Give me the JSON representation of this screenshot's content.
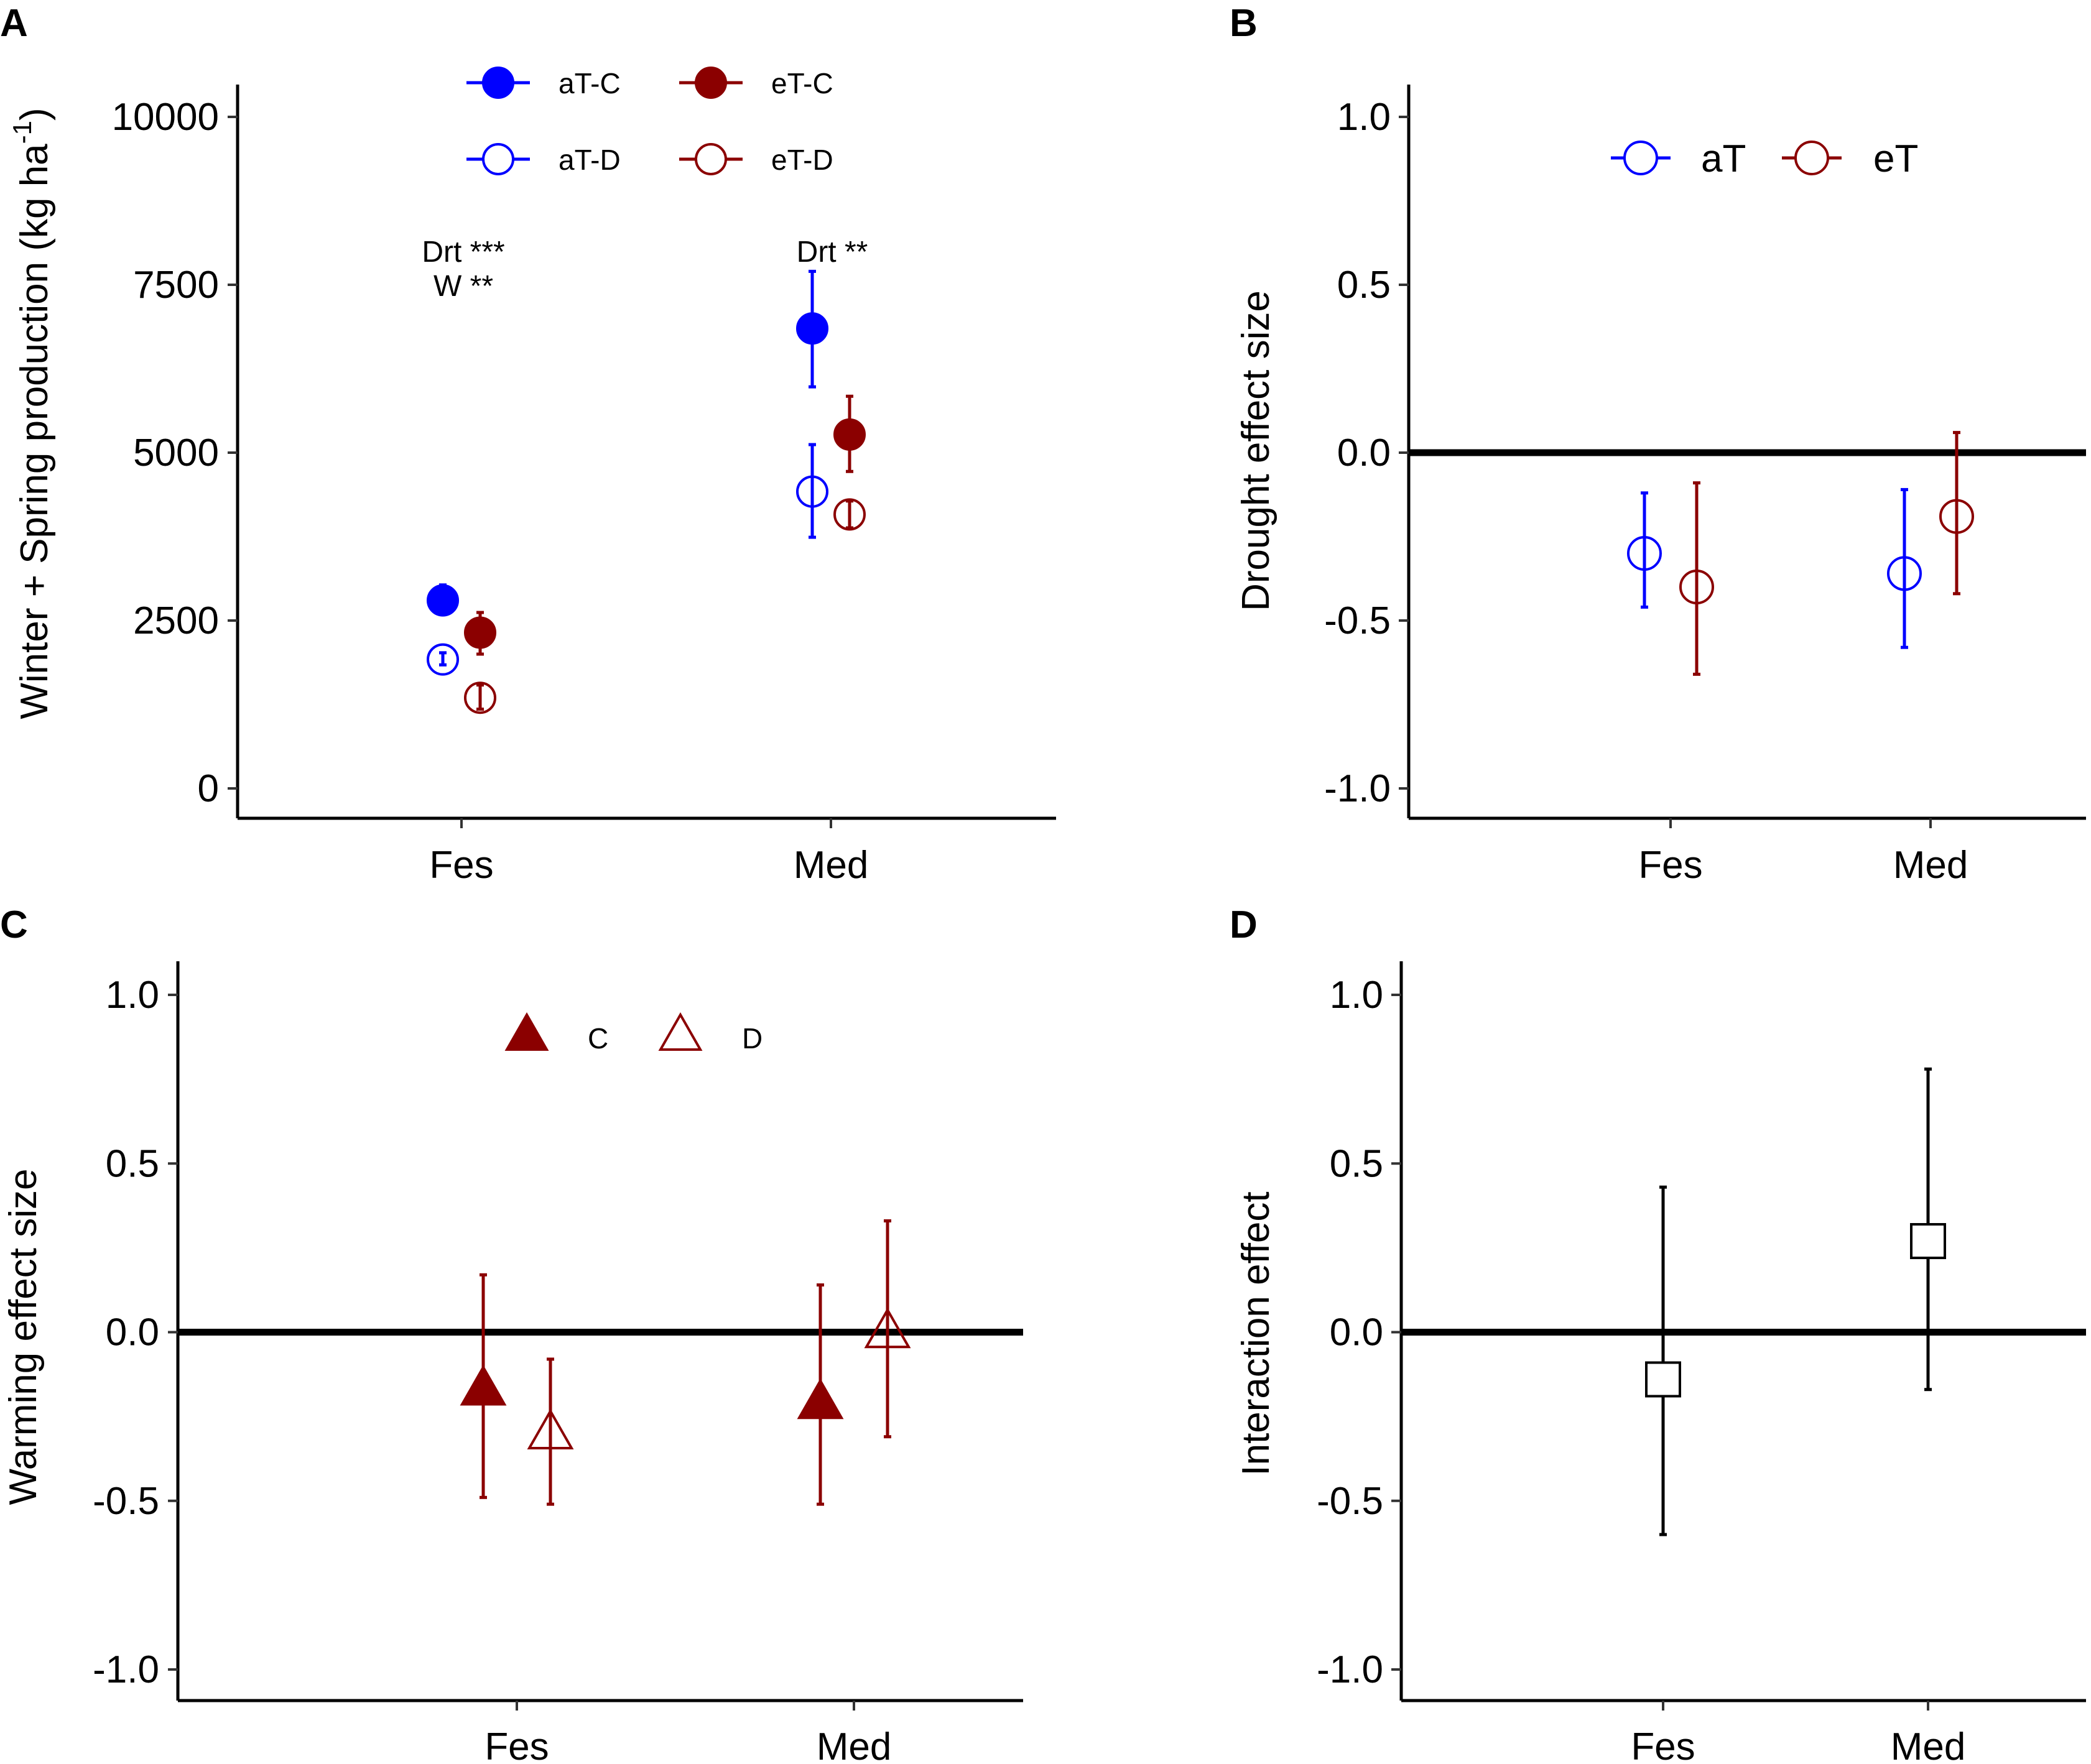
{
  "chart_data": [
    {
      "panel": "A",
      "type": "scatter",
      "subtype": "point-with-errorbars",
      "categories": [
        "Fes",
        "Med"
      ],
      "ylabel": "Winter + Spring production (kg ha",
      "ylabel_sup": "-1",
      "ylabel_close": ")",
      "ylim": [
        0,
        10000
      ],
      "yticks": [
        0,
        2500,
        5000,
        7500,
        10000
      ],
      "yticklabels": [
        "0",
        "2500",
        "5000",
        "7500",
        "10000"
      ],
      "legend": {
        "position": "top",
        "entries": [
          {
            "label": "aT-C",
            "color": "#0000FF",
            "filled": true
          },
          {
            "label": "eT-C",
            "color": "#8B0000",
            "filled": true
          },
          {
            "label": "aT-D",
            "color": "#0000FF",
            "filled": false
          },
          {
            "label": "eT-D",
            "color": "#8B0000",
            "filled": false
          }
        ]
      },
      "series": [
        {
          "name": "aT-C",
          "color": "#0000FF",
          "filled": true,
          "values": [
            2800,
            6850
          ],
          "lower": [
            2600,
            5980
          ],
          "upper": [
            3030,
            7700
          ]
        },
        {
          "name": "aT-D",
          "color": "#0000FF",
          "filled": false,
          "values": [
            1920,
            4420
          ],
          "lower": [
            1840,
            3740
          ],
          "upper": [
            2020,
            5120
          ]
        },
        {
          "name": "eT-C",
          "color": "#8B0000",
          "filled": true,
          "values": [
            2320,
            5270
          ],
          "lower": [
            2000,
            4720
          ],
          "upper": [
            2620,
            5840
          ]
        },
        {
          "name": "eT-D",
          "color": "#8B0000",
          "filled": false,
          "values": [
            1350,
            4080
          ],
          "lower": [
            1180,
            3880
          ],
          "upper": [
            1540,
            4280
          ]
        }
      ],
      "annotations": [
        {
          "category": "Fes",
          "lines": [
            "Drt ***",
            "W **"
          ]
        },
        {
          "category": "Med",
          "lines": [
            "Drt **"
          ]
        }
      ]
    },
    {
      "panel": "B",
      "type": "scatter",
      "subtype": "point-with-errorbars",
      "categories": [
        "Fes",
        "Med"
      ],
      "ylabel": "Drought effect size",
      "ylim": [
        -1.0,
        1.0
      ],
      "yticks": [
        -1.0,
        -0.5,
        0.0,
        0.5,
        1.0
      ],
      "yticklabels": [
        "-1.0",
        "-0.5",
        "0.0",
        "0.5",
        "1.0"
      ],
      "reference_line": 0,
      "legend": {
        "position": "top",
        "entries": [
          {
            "label": "aT",
            "color": "#0000FF",
            "filled": false
          },
          {
            "label": "eT",
            "color": "#8B0000",
            "filled": false
          }
        ]
      },
      "series": [
        {
          "name": "aT",
          "color": "#0000FF",
          "filled": false,
          "values": [
            -0.3,
            -0.36
          ],
          "lower": [
            -0.46,
            -0.58
          ],
          "upper": [
            -0.12,
            -0.11
          ]
        },
        {
          "name": "eT",
          "color": "#8B0000",
          "filled": false,
          "values": [
            -0.4,
            -0.19
          ],
          "lower": [
            -0.66,
            -0.42
          ],
          "upper": [
            -0.09,
            0.06
          ]
        }
      ]
    },
    {
      "panel": "C",
      "type": "scatter",
      "subtype": "point-with-errorbars",
      "categories": [
        "Fes",
        "Med"
      ],
      "ylabel": "Warming effect size",
      "ylim": [
        -1.0,
        1.0
      ],
      "yticks": [
        -1.0,
        -0.5,
        0.0,
        0.5,
        1.0
      ],
      "yticklabels": [
        "-1.0",
        "-0.5",
        "0.0",
        "0.5",
        "1.0"
      ],
      "reference_line": 0,
      "legend": {
        "position": "top",
        "entries": [
          {
            "label": "C",
            "color": "#8B0000",
            "filled": true,
            "shape": "triangle"
          },
          {
            "label": "D",
            "color": "#8B0000",
            "filled": false,
            "shape": "triangle"
          }
        ]
      },
      "series": [
        {
          "name": "C",
          "color": "#8B0000",
          "filled": true,
          "shape": "triangle",
          "values": [
            -0.17,
            -0.21
          ],
          "lower": [
            -0.49,
            -0.51
          ],
          "upper": [
            0.17,
            0.14
          ]
        },
        {
          "name": "D",
          "color": "#8B0000",
          "filled": false,
          "shape": "triangle",
          "values": [
            -0.3,
            0.0
          ],
          "lower": [
            -0.51,
            -0.31
          ],
          "upper": [
            -0.08,
            0.33
          ]
        }
      ]
    },
    {
      "panel": "D",
      "type": "scatter",
      "subtype": "point-with-errorbars",
      "categories": [
        "Fes",
        "Med"
      ],
      "ylabel": "Interaction effect",
      "ylim": [
        -1.0,
        1.0
      ],
      "yticks": [
        -1.0,
        -0.5,
        0.0,
        0.5,
        1.0
      ],
      "yticklabels": [
        "-1.0",
        "-0.5",
        "0.0",
        "0.5",
        "1.0"
      ],
      "reference_line": 0,
      "series": [
        {
          "name": "Interaction",
          "color": "#000000",
          "filled": false,
          "shape": "square",
          "values": [
            -0.14,
            0.27
          ],
          "lower": [
            -0.6,
            -0.17
          ],
          "upper": [
            0.43,
            0.78
          ]
        }
      ]
    }
  ]
}
